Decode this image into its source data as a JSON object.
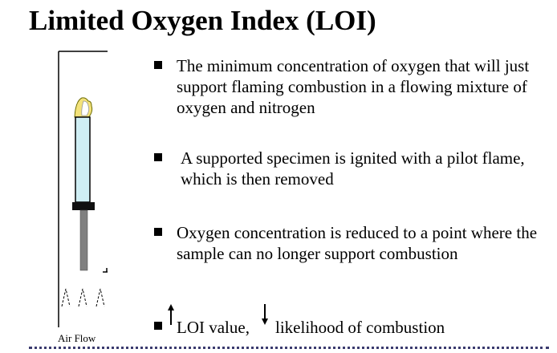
{
  "title": "Limited Oxygen Index (LOI)",
  "figure": {
    "caption": "Air Flow"
  },
  "bullets": [
    "The minimum concentration of oxygen that will just support flaming combustion in a flowing mixture of oxygen and nitrogen",
    "A supported specimen is ignited with a pilot flame, which is then removed",
    "Oxygen concentration is reduced to a point where the sample can no longer support combustion"
  ],
  "loi_statement": {
    "part1": "LOI value,",
    "part2": "likelihood of combustion",
    "up_icon": "arrow-up-icon",
    "down_icon": "arrow-down-icon"
  },
  "colors": {
    "specimen_tube": "#cfeef4",
    "flame": "#f3e27a",
    "clamp": "#111111",
    "rod": "#808080",
    "footer_rule": "#3a3a6e"
  }
}
